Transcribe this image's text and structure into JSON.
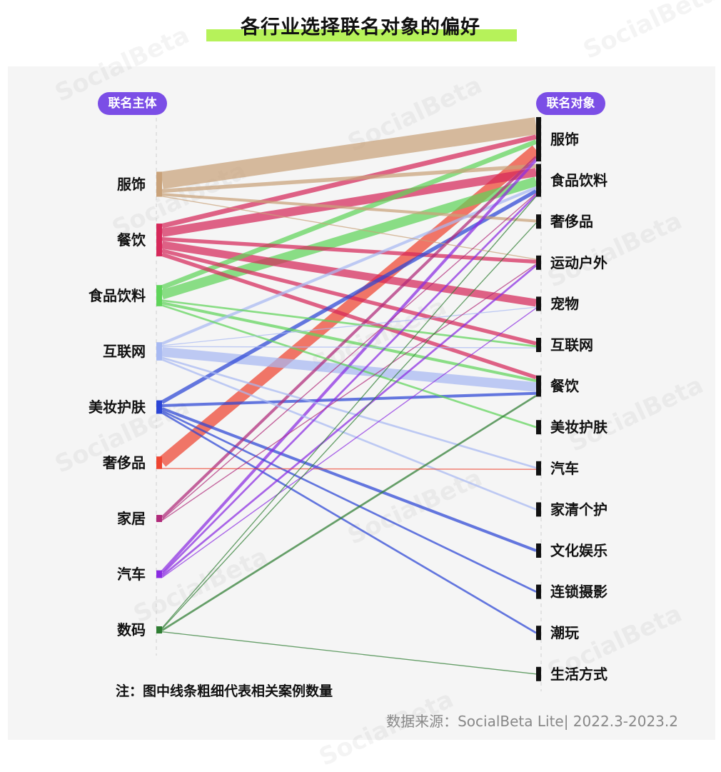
{
  "title": "各行业选择联名对象的偏好",
  "left_header": "联名主体",
  "right_header": "联名对象",
  "note": "注：图中线条粗细代表相关案例数量",
  "source": "数据来源：SocialBeta Lite| 2022.3-2023.2",
  "watermark": "SocialBeta",
  "chart_data": {
    "type": "sankey",
    "title": "各行业选择联名对象的偏好",
    "left_nodes": [
      {
        "name": "服饰",
        "color": "#c9a27a"
      },
      {
        "name": "餐饮",
        "color": "#d6285a"
      },
      {
        "name": "食品饮料",
        "color": "#5fd45a"
      },
      {
        "name": "互联网",
        "color": "#a7b9f2"
      },
      {
        "name": "美妆护肤",
        "color": "#2b45d6"
      },
      {
        "name": "奢侈品",
        "color": "#ee4430"
      },
      {
        "name": "家居",
        "color": "#b02a7a"
      },
      {
        "name": "汽车",
        "color": "#8a2be2"
      },
      {
        "name": "数码",
        "color": "#2e7d32"
      }
    ],
    "right_nodes": [
      "服饰",
      "食品饮料",
      "奢侈品",
      "运动户外",
      "宠物",
      "互联网",
      "餐饮",
      "美妆护肤",
      "汽车",
      "家清个护",
      "文化娱乐",
      "连锁摄影",
      "潮玩",
      "生活方式"
    ],
    "links": [
      {
        "source": "服饰",
        "target": "服饰",
        "value": 18
      },
      {
        "source": "服饰",
        "target": "食品饮料",
        "value": 4
      },
      {
        "source": "服饰",
        "target": "奢侈品",
        "value": 3
      },
      {
        "source": "服饰",
        "target": "运动户外",
        "value": 1
      },
      {
        "source": "餐饮",
        "target": "服饰",
        "value": 5
      },
      {
        "source": "餐饮",
        "target": "食品饮料",
        "value": 9
      },
      {
        "source": "餐饮",
        "target": "运动户外",
        "value": 4
      },
      {
        "source": "餐饮",
        "target": "宠物",
        "value": 8
      },
      {
        "source": "餐饮",
        "target": "互联网",
        "value": 4
      },
      {
        "source": "餐饮",
        "target": "餐饮",
        "value": 4
      },
      {
        "source": "食品饮料",
        "target": "服饰",
        "value": 5
      },
      {
        "source": "食品饮料",
        "target": "食品饮料",
        "value": 10
      },
      {
        "source": "食品饮料",
        "target": "互联网",
        "value": 2
      },
      {
        "source": "食品饮料",
        "target": "餐饮",
        "value": 3
      },
      {
        "source": "食品饮料",
        "target": "美妆护肤",
        "value": 2
      },
      {
        "source": "互联网",
        "target": "食品饮料",
        "value": 3
      },
      {
        "source": "互联网",
        "target": "宠物",
        "value": 1
      },
      {
        "source": "互联网",
        "target": "互联网",
        "value": 1
      },
      {
        "source": "互联网",
        "target": "餐饮",
        "value": 10
      },
      {
        "source": "互联网",
        "target": "汽车",
        "value": 2
      },
      {
        "source": "互联网",
        "target": "家清个护",
        "value": 2
      },
      {
        "source": "美妆护肤",
        "target": "食品饮料",
        "value": 4
      },
      {
        "source": "美妆护肤",
        "target": "餐饮",
        "value": 3
      },
      {
        "source": "美妆护肤",
        "target": "文化娱乐",
        "value": 3
      },
      {
        "source": "美妆护肤",
        "target": "连锁摄影",
        "value": 2
      },
      {
        "source": "美妆护肤",
        "target": "潮玩",
        "value": 2
      },
      {
        "source": "奢侈品",
        "target": "服饰",
        "value": 12
      },
      {
        "source": "奢侈品",
        "target": "汽车",
        "value": 1
      },
      {
        "source": "家居",
        "target": "服饰",
        "value": 3
      },
      {
        "source": "家居",
        "target": "食品饮料",
        "value": 1
      },
      {
        "source": "家居",
        "target": "运动户外",
        "value": 1
      },
      {
        "source": "汽车",
        "target": "服饰",
        "value": 3
      },
      {
        "source": "汽车",
        "target": "食品饮料",
        "value": 2
      },
      {
        "source": "汽车",
        "target": "运动户外",
        "value": 2
      },
      {
        "source": "汽车",
        "target": "宠物",
        "value": 1
      },
      {
        "source": "数码",
        "target": "食品饮料",
        "value": 1
      },
      {
        "source": "数码",
        "target": "奢侈品",
        "value": 1
      },
      {
        "source": "数码",
        "target": "餐饮",
        "value": 2
      },
      {
        "source": "数码",
        "target": "生活方式",
        "value": 1
      }
    ]
  }
}
